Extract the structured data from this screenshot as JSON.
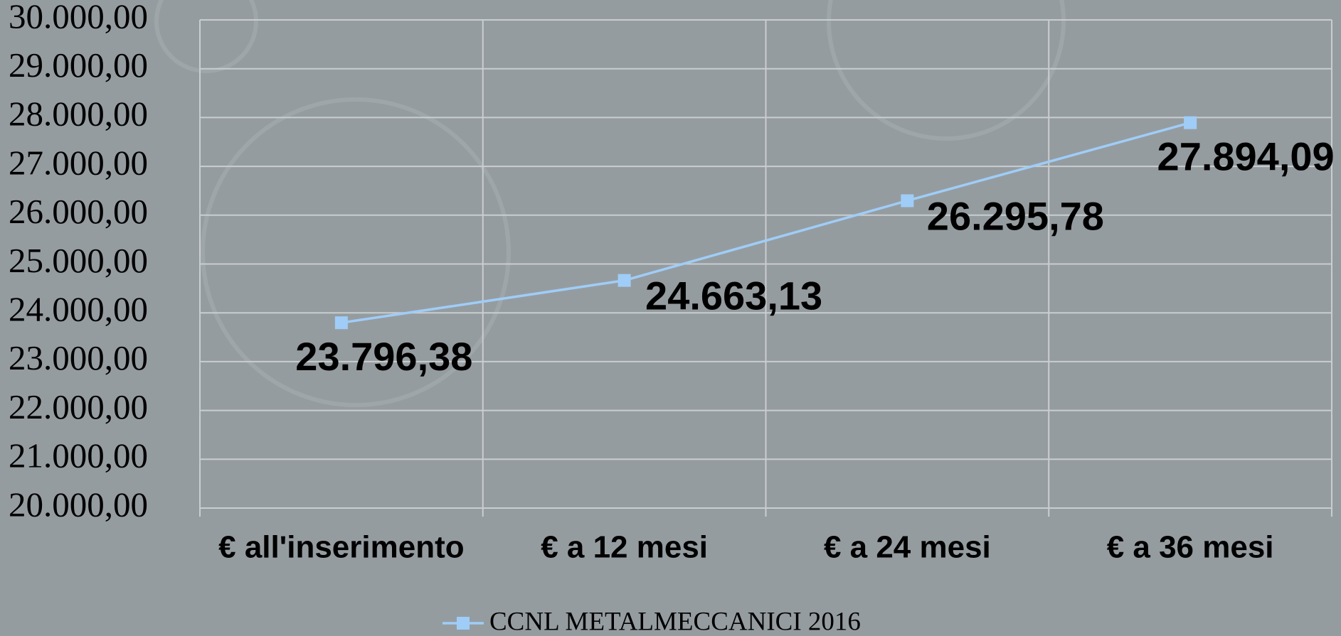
{
  "chart_data": {
    "type": "line",
    "categories": [
      "€ all'inserimento",
      "€ a 12 mesi",
      "€ a 24 mesi",
      "€ a 36 mesi"
    ],
    "series": [
      {
        "name": "CCNL METALMECCANICI 2016",
        "color": "#9fcdf7",
        "values": [
          23796.38,
          24663.13,
          26295.78,
          27894.09
        ],
        "value_labels": [
          "23.796,38",
          "24.663,13",
          "26.295,78",
          "27.894,09"
        ]
      }
    ],
    "ylim": [
      20000,
      30000
    ],
    "yticks": [
      {
        "value": 20000,
        "label": "20.000,00"
      },
      {
        "value": 21000,
        "label": "21.000,00"
      },
      {
        "value": 22000,
        "label": "22.000,00"
      },
      {
        "value": 23000,
        "label": "23.000,00"
      },
      {
        "value": 24000,
        "label": "24.000,00"
      },
      {
        "value": 25000,
        "label": "25.000,00"
      },
      {
        "value": 26000,
        "label": "26.000,00"
      },
      {
        "value": 27000,
        "label": "27.000,00"
      },
      {
        "value": 28000,
        "label": "28.000,00"
      },
      {
        "value": 29000,
        "label": "29.000,00"
      },
      {
        "value": 30000,
        "label": "30.000,00"
      }
    ],
    "grid": true,
    "legend": "bottom"
  }
}
